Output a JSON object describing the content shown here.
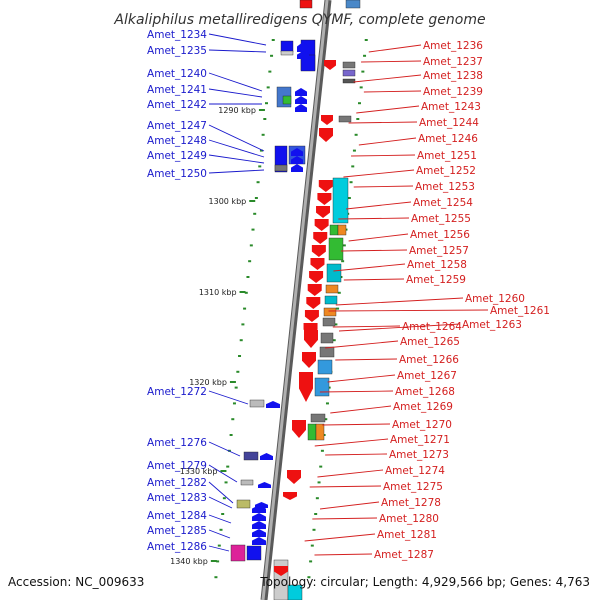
{
  "title": "Alkaliphilus metalliredigens QYMF, complete genome",
  "footer": {
    "accession": "Accession: NC_009633",
    "topology": "Topology: circular; Length: 4,929,566 bp; Genes: 4,763"
  },
  "position_labels": [
    "1290 kbp",
    "1300 kbp",
    "1310 kbp",
    "1320 kbp",
    "1330 kbp",
    "1340 kbp"
  ],
  "left_genes": [
    "Amet_1234",
    "Amet_1235",
    "Amet_1240",
    "Amet_1241",
    "Amet_1242",
    "Amet_1247",
    "Amet_1248",
    "Amet_1249",
    "Amet_1250",
    "Amet_1272",
    "Amet_1276",
    "Amet_1279",
    "Amet_1282",
    "Amet_1283",
    "Amet_1284",
    "Amet_1285",
    "Amet_1286"
  ],
  "right_genes": [
    "Amet_1236",
    "Amet_1237",
    "Amet_1238",
    "Amet_1239",
    "Amet_1243",
    "Amet_1244",
    "Amet_1246",
    "Amet_1251",
    "Amet_1252",
    "Amet_1253",
    "Amet_1254",
    "Amet_1255",
    "Amet_1256",
    "Amet_1257",
    "Amet_1258",
    "Amet_1259",
    "Amet_1260",
    "Amet_1261",
    "Amet_1263",
    "Amet_1264",
    "Amet_1265",
    "Amet_1266",
    "Amet_1267",
    "Amet_1268",
    "Amet_1269",
    "Amet_1270",
    "Amet_1271",
    "Amet_1273",
    "Amet_1274",
    "Amet_1275",
    "Amet_1278",
    "Amet_1280",
    "Amet_1281",
    "Amet_1287"
  ],
  "colors": {
    "forward_strand": "#ee1111",
    "reverse_strand": "#1111ee",
    "left_label": "#1a1acc",
    "right_label": "#d42020",
    "backbone": "#8a8a8a",
    "tick": "#2a8a2a"
  }
}
